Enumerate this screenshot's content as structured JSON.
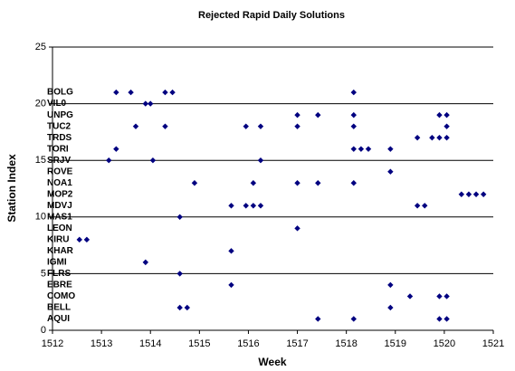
{
  "chart_data": {
    "type": "scatter",
    "title": "Rejected Rapid Daily Solutions",
    "x_label": "Week",
    "y_label": "Station Index",
    "xlim": [
      1512,
      1521
    ],
    "xticks": [
      1512,
      1513,
      1514,
      1515,
      1516,
      1517,
      1518,
      1519,
      1520,
      1521
    ],
    "ylim": [
      0,
      25
    ],
    "yticks": [
      0,
      5,
      10,
      15,
      20,
      25
    ],
    "grid": true,
    "annotations": [
      {
        "text": "AQUI",
        "y": 1
      },
      {
        "text": "BELL",
        "y": 2
      },
      {
        "text": "COMO",
        "y": 3
      },
      {
        "text": "EBRE",
        "y": 4
      },
      {
        "text": "FLRS",
        "y": 5
      },
      {
        "text": "IGMI",
        "y": 6
      },
      {
        "text": "KHAR",
        "y": 7
      },
      {
        "text": "KIRU",
        "y": 8
      },
      {
        "text": "LEON",
        "y": 9
      },
      {
        "text": "MAS1",
        "y": 10
      },
      {
        "text": "MDVJ",
        "y": 11
      },
      {
        "text": "MOP2",
        "y": 12
      },
      {
        "text": "NOA1",
        "y": 13
      },
      {
        "text": "ROVE",
        "y": 14
      },
      {
        "text": "SRJV",
        "y": 15
      },
      {
        "text": "TORI",
        "y": 16
      },
      {
        "text": "TRDS",
        "y": 17
      },
      {
        "text": "TUC2",
        "y": 18
      },
      {
        "text": "UNPG",
        "y": 19
      },
      {
        "text": "VIL0",
        "y": 20
      },
      {
        "text": "BOLG",
        "y": 21
      }
    ],
    "series": [
      {
        "color": "#000080",
        "x": [
          1513.3,
          1513.6,
          1514.3,
          1514.45,
          1518.15,
          1513.9,
          1514.0,
          1517.0,
          1517.42,
          1518.15,
          1519.9,
          1520.05,
          1513.7,
          1514.3,
          1515.95,
          1516.25,
          1517.0,
          1518.15,
          1520.05,
          1519.45,
          1519.75,
          1519.9,
          1520.05,
          1513.3,
          1518.15,
          1518.3,
          1518.45,
          1518.9,
          1513.15,
          1514.05,
          1516.25,
          1518.9,
          1514.9,
          1516.1,
          1517.0,
          1517.42,
          1518.15,
          1520.35,
          1520.5,
          1520.65,
          1520.8,
          1515.65,
          1515.95,
          1516.1,
          1516.25,
          1519.45,
          1519.6,
          1514.6,
          1517.0,
          1512.55,
          1512.7,
          1515.65,
          1513.9,
          1514.6,
          1515.65,
          1518.9,
          1519.3,
          1519.9,
          1520.05,
          1514.6,
          1514.75,
          1518.9,
          1517.42,
          1518.15,
          1519.9,
          1520.05
        ],
        "values": [
          21,
          21,
          21,
          21,
          21,
          20,
          20,
          19,
          19,
          19,
          19,
          19,
          18,
          18,
          18,
          18,
          18,
          18,
          18,
          17,
          17,
          17,
          17,
          16,
          16,
          16,
          16,
          16,
          15,
          15,
          15,
          14,
          13,
          13,
          13,
          13,
          13,
          12,
          12,
          12,
          12,
          11,
          11,
          11,
          11,
          11,
          11,
          10,
          9,
          8,
          8,
          7,
          6,
          5,
          4,
          4,
          3,
          3,
          3,
          2,
          2,
          2,
          1,
          1,
          1,
          1
        ]
      }
    ]
  }
}
